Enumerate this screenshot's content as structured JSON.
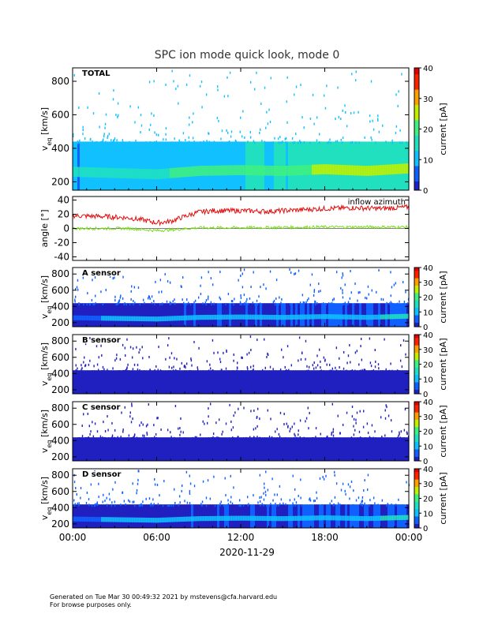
{
  "title": "SPC ion mode quick look, mode 0",
  "date_label": "2020-11-29",
  "footer": {
    "line1": "Generated on Tue Mar 30 00:49:32 2021 by mstevens@cfa.harvard.edu",
    "line2": "For browse purposes only."
  },
  "x_ticks": [
    "00:00",
    "06:00",
    "12:00",
    "18:00",
    "00:00"
  ],
  "colors": {
    "background": "#ffffff",
    "inflow": "#e01010",
    "secondary": "#7ddc1f",
    "colormap": [
      "#2020c0",
      "#1060ff",
      "#10c0ff",
      "#20e0c0",
      "#40f080",
      "#c0f000",
      "#ffa000",
      "#ff2000",
      "#e00000"
    ]
  },
  "chart_data": [
    {
      "type": "heatmap",
      "panel": "TOTAL",
      "label": "TOTAL",
      "ylabel": "v_eq [km/s]",
      "y_ticks": [
        "200",
        "400",
        "600",
        "800"
      ],
      "ylim": [
        150,
        880
      ],
      "xlim": [
        0,
        24
      ],
      "colorbar": {
        "label": "current [pA]",
        "ticks": [
          "0",
          "10",
          "20",
          "30",
          "40"
        ],
        "range": [
          0,
          40
        ]
      },
      "background_level": 7,
      "band": {
        "v_range": [
          150,
          440
        ],
        "level_start": 8,
        "level_end": 16
      },
      "core_band": {
        "t": [
          0,
          6,
          9,
          12,
          15,
          18,
          21,
          24
        ],
        "v_center": [
          260,
          245,
          265,
          270,
          265,
          275,
          265,
          280
        ]
      }
    },
    {
      "type": "line",
      "panel": "angle",
      "ylabel": "angle [°]",
      "y_ticks": [
        "-40",
        "-20",
        "0",
        "20",
        "40"
      ],
      "ylim": [
        -45,
        45
      ],
      "xlim": [
        0,
        24
      ],
      "annotation": "inflow azimuth",
      "series": [
        {
          "name": "inflow azimuth",
          "color": "#e01010",
          "x": [
            0,
            2,
            4,
            5,
            6,
            7,
            8,
            9,
            10,
            12,
            14,
            16,
            18,
            20,
            22,
            24
          ],
          "y": [
            18,
            17,
            15,
            12,
            8,
            10,
            17,
            23,
            25,
            25,
            24,
            26,
            28,
            29,
            28,
            30
          ]
        },
        {
          "color": "#7ddc1f",
          "x": [
            0,
            4,
            6,
            7,
            9,
            12,
            18,
            24
          ],
          "y": [
            0,
            0,
            -3,
            -2,
            1,
            1,
            2,
            2
          ]
        }
      ]
    },
    {
      "type": "heatmap",
      "panel": "A sensor",
      "label": "A sensor",
      "ylabel": "v_eq [km/s]",
      "y_ticks": [
        "200",
        "400",
        "600",
        "800"
      ],
      "ylim": [
        150,
        880
      ],
      "xlim": [
        0,
        24
      ],
      "colorbar": {
        "label": "current [pA]",
        "ticks": [
          "0",
          "10",
          "20",
          "30",
          "40"
        ],
        "range": [
          0,
          40
        ]
      },
      "background_level": 1,
      "band": {
        "v_range": [
          150,
          440
        ],
        "level_start": 1,
        "level_end": 3
      },
      "core_band": {
        "t": [
          0,
          6,
          9,
          12,
          15,
          18,
          21,
          24
        ],
        "v_center": [
          260,
          245,
          265,
          270,
          265,
          275,
          265,
          280
        ]
      }
    },
    {
      "type": "heatmap",
      "panel": "B sensor",
      "label": "B sensor",
      "ylabel": "v_eq [km/s]",
      "y_ticks": [
        "200",
        "400",
        "600",
        "800"
      ],
      "ylim": [
        150,
        880
      ],
      "xlim": [
        0,
        24
      ],
      "colorbar": {
        "label": "current [pA]",
        "ticks": [
          "0",
          "10",
          "20",
          "30",
          "40"
        ],
        "range": [
          0,
          40
        ]
      },
      "background_level": 0,
      "band": {
        "v_range": [
          150,
          440
        ],
        "level_start": 0,
        "level_end": 0
      },
      "core_band": null
    },
    {
      "type": "heatmap",
      "panel": "C sensor",
      "label": "C sensor",
      "ylabel": "v_eq [km/s]",
      "y_ticks": [
        "200",
        "400",
        "600",
        "800"
      ],
      "ylim": [
        150,
        880
      ],
      "xlim": [
        0,
        24
      ],
      "colorbar": {
        "label": "current [pA]",
        "ticks": [
          "0",
          "10",
          "20",
          "30",
          "40"
        ],
        "range": [
          0,
          40
        ]
      },
      "background_level": 0,
      "band": {
        "v_range": [
          150,
          440
        ],
        "level_start": 0,
        "level_end": 0
      },
      "core_band": null
    },
    {
      "type": "heatmap",
      "panel": "D sensor",
      "label": "D sensor",
      "ylabel": "v_eq [km/s]",
      "y_ticks": [
        "200",
        "400",
        "600",
        "800"
      ],
      "ylim": [
        150,
        880
      ],
      "xlim": [
        0,
        24
      ],
      "colorbar": {
        "label": "current [pA]",
        "ticks": [
          "0",
          "10",
          "20",
          "30",
          "40"
        ],
        "range": [
          0,
          40
        ]
      },
      "background_level": 1,
      "band": {
        "v_range": [
          150,
          440
        ],
        "level_start": 1,
        "level_end": 3
      },
      "core_band": {
        "t": [
          0,
          6,
          9,
          12,
          15,
          18,
          21,
          24
        ],
        "v_center": [
          260,
          245,
          265,
          270,
          265,
          275,
          265,
          280
        ]
      }
    }
  ]
}
